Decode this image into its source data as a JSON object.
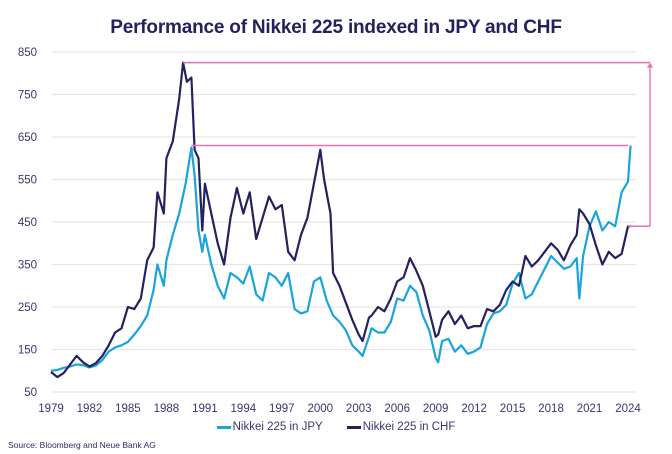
{
  "chart_data": {
    "type": "line",
    "title": "Performance of Nikkei 225 indexed in JPY and CHF",
    "xlabel": "",
    "ylabel": "",
    "xlim": [
      1979,
      2024.3
    ],
    "ylim": [
      50,
      850
    ],
    "yticks": [
      850,
      750,
      650,
      550,
      450,
      350,
      250,
      150,
      50
    ],
    "xticks": [
      1979,
      1982,
      1985,
      1988,
      1991,
      1994,
      1997,
      2000,
      2003,
      2006,
      2009,
      2012,
      2015,
      2018,
      2021,
      2024
    ],
    "grid": true,
    "legend_position": "bottom",
    "series": [
      {
        "name": "Nikkei 225 in JPY",
        "color": "#1ba3dd",
        "x": [
          1979,
          1979.5,
          1980,
          1980.5,
          1981,
          1981.5,
          1982,
          1982.5,
          1983,
          1983.5,
          1984,
          1984.5,
          1985,
          1985.5,
          1986,
          1986.5,
          1987,
          1987.3,
          1987.8,
          1988,
          1988.5,
          1989,
          1989.5,
          1989.95,
          1990.2,
          1990.5,
          1990.8,
          1991,
          1991.5,
          1992,
          1992.5,
          1993,
          1993.5,
          1994,
          1994.5,
          1995,
          1995.5,
          1996,
          1996.5,
          1997,
          1997.5,
          1998,
          1998.5,
          1999,
          1999.5,
          2000,
          2000.5,
          2001,
          2001.5,
          2002,
          2002.5,
          2003,
          2003.3,
          2003.8,
          2004,
          2004.5,
          2005,
          2005.5,
          2006,
          2006.5,
          2007,
          2007.5,
          2008,
          2008.5,
          2009,
          2009.2,
          2009.5,
          2010,
          2010.5,
          2011,
          2011.5,
          2012,
          2012.5,
          2013,
          2013.5,
          2014,
          2014.5,
          2015,
          2015.5,
          2016,
          2016.5,
          2017,
          2017.5,
          2018,
          2018.5,
          2019,
          2019.5,
          2020,
          2020.2,
          2020.5,
          2021,
          2021.5,
          2022,
          2022.5,
          2023,
          2023.5,
          2024,
          2024.2
        ],
        "values": [
          100,
          102,
          107,
          110,
          115,
          113,
          108,
          112,
          125,
          145,
          155,
          160,
          168,
          185,
          205,
          230,
          290,
          350,
          300,
          360,
          420,
          470,
          540,
          625,
          560,
          430,
          380,
          420,
          350,
          300,
          270,
          330,
          320,
          305,
          345,
          280,
          265,
          330,
          320,
          300,
          330,
          245,
          235,
          240,
          310,
          320,
          265,
          230,
          215,
          195,
          160,
          145,
          135,
          180,
          200,
          190,
          190,
          215,
          270,
          265,
          300,
          285,
          230,
          195,
          130,
          120,
          170,
          175,
          145,
          160,
          140,
          145,
          155,
          210,
          235,
          240,
          255,
          305,
          330,
          270,
          280,
          310,
          340,
          370,
          355,
          340,
          345,
          365,
          270,
          370,
          440,
          475,
          430,
          450,
          440,
          520,
          545,
          630
        ]
      },
      {
        "name": "Nikkei 225 in CHF",
        "color": "#24215f",
        "x": [
          1979,
          1979.5,
          1980,
          1980.5,
          1981,
          1981.5,
          1982,
          1982.5,
          1983,
          1983.5,
          1984,
          1984.5,
          1985,
          1985.5,
          1986,
          1986.5,
          1987,
          1987.3,
          1987.8,
          1988,
          1988.5,
          1989,
          1989.3,
          1989.6,
          1989.95,
          1990.2,
          1990.5,
          1990.8,
          1991,
          1991.5,
          1992,
          1992.5,
          1993,
          1993.5,
          1994,
          1994.5,
          1995,
          1995.5,
          1996,
          1996.5,
          1997,
          1997.5,
          1998,
          1998.5,
          1999,
          1999.5,
          2000,
          2000.3,
          2000.8,
          2001,
          2001.5,
          2002,
          2002.5,
          2003,
          2003.3,
          2003.8,
          2004,
          2004.5,
          2005,
          2005.5,
          2006,
          2006.5,
          2007,
          2007.5,
          2008,
          2008.5,
          2009,
          2009.2,
          2009.5,
          2010,
          2010.5,
          2011,
          2011.5,
          2012,
          2012.5,
          2013,
          2013.5,
          2014,
          2014.5,
          2015,
          2015.5,
          2016,
          2016.5,
          2017,
          2017.5,
          2018,
          2018.5,
          2019,
          2019.5,
          2020,
          2020.2,
          2020.5,
          2021,
          2021.5,
          2022,
          2022.5,
          2023,
          2023.5,
          2024,
          2024.2
        ],
        "values": [
          97,
          85,
          95,
          115,
          135,
          120,
          110,
          118,
          135,
          160,
          190,
          200,
          250,
          245,
          270,
          360,
          390,
          520,
          470,
          600,
          640,
          740,
          825,
          780,
          790,
          620,
          600,
          430,
          540,
          470,
          400,
          350,
          460,
          530,
          470,
          520,
          410,
          460,
          510,
          480,
          490,
          380,
          360,
          420,
          460,
          540,
          620,
          550,
          470,
          330,
          300,
          260,
          220,
          185,
          170,
          225,
          230,
          250,
          240,
          270,
          310,
          320,
          365,
          335,
          300,
          240,
          180,
          185,
          220,
          240,
          210,
          230,
          200,
          205,
          205,
          245,
          240,
          255,
          290,
          310,
          300,
          370,
          345,
          360,
          380,
          400,
          385,
          360,
          395,
          420,
          480,
          470,
          445,
          395,
          350,
          380,
          365,
          375,
          440,
          440
        ]
      }
    ],
    "annotations": [
      {
        "type": "bracket-arrow",
        "color": "#ec6fb0",
        "from_value": 440,
        "to_value": 825,
        "top_line_start_year": 1989.3,
        "mid_line_start_year": 1989.95,
        "mid_line_value": 630
      }
    ]
  },
  "legend": {
    "items": [
      {
        "label": "Nikkei 225 in JPY",
        "color": "#1ba3dd"
      },
      {
        "label": "Nikkei 225 in CHF",
        "color": "#24215f"
      }
    ]
  },
  "source": "Source: Bloomberg and Neue Bank AG"
}
